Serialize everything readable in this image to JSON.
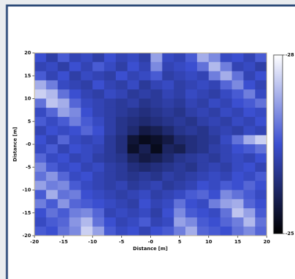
{
  "chart_data": {
    "type": "heatmap",
    "xlabel": "Distance [m]",
    "ylabel": "Distance [m]",
    "xlim": [
      -20,
      20
    ],
    "ylim": [
      -20,
      20
    ],
    "xticks": [
      -20,
      -15,
      -10,
      -5,
      {
        "value": 0,
        "label": "-0"
      },
      5,
      10,
      15,
      20
    ],
    "yticks": [
      20,
      15,
      10,
      5,
      {
        "value": 0,
        "label": "-0"
      },
      -5,
      -10,
      -15,
      -20
    ],
    "colormap": [
      "#000000",
      "#3b4fd0",
      "#ffffff"
    ],
    "zlim": [
      -25,
      -28
    ],
    "zticks": [
      -28,
      -25
    ],
    "z": [
      [
        -26.5,
        -26.2,
        -26.6,
        -26.3,
        -26.4,
        -26.2,
        -26.5,
        -26.3,
        -26.4,
        -26.2,
        -27.2,
        -26.4,
        -26.3,
        -26.6,
        -27.3,
        -27.0,
        -26.4,
        -26.5,
        -26.3,
        -26.6
      ],
      [
        -26.3,
        -26.4,
        -26.2,
        -26.5,
        -26.3,
        -26.6,
        -26.4,
        -26.2,
        -26.5,
        -26.3,
        -27.0,
        -26.3,
        -26.4,
        -26.5,
        -26.8,
        -27.4,
        -26.9,
        -26.3,
        -26.4,
        -26.2
      ],
      [
        -26.6,
        -26.3,
        -26.5,
        -26.2,
        -26.4,
        -26.3,
        -26.2,
        -26.5,
        -26.3,
        -26.4,
        -26.6,
        -26.2,
        -26.3,
        -26.4,
        -26.3,
        -26.9,
        -27.3,
        -26.8,
        -26.3,
        -26.5
      ],
      [
        -27.3,
        -26.9,
        -26.4,
        -26.3,
        -26.2,
        -26.5,
        -26.3,
        -26.2,
        -26.4,
        -26.1,
        -26.3,
        -26.4,
        -26.2,
        -26.3,
        -26.4,
        -26.3,
        -26.7,
        -27.0,
        -26.5,
        -26.3
      ],
      [
        -27.6,
        -27.4,
        -26.8,
        -26.5,
        -26.3,
        -26.2,
        -26.4,
        -26.3,
        -26.1,
        -26.2,
        -26.1,
        -26.3,
        -26.2,
        -26.4,
        -26.3,
        -26.2,
        -26.4,
        -26.6,
        -26.9,
        -26.4
      ],
      [
        -26.8,
        -27.5,
        -27.3,
        -26.7,
        -26.4,
        -26.3,
        -26.2,
        -26.1,
        -26.2,
        -26.0,
        -26.1,
        -26.2,
        -26.1,
        -26.3,
        -26.2,
        -26.4,
        -26.3,
        -26.5,
        -26.6,
        -26.8
      ],
      [
        -26.4,
        -26.7,
        -27.2,
        -27.0,
        -26.5,
        -26.3,
        -26.2,
        -26.1,
        -26.0,
        -25.9,
        -26.0,
        -26.1,
        -26.0,
        -26.2,
        -26.3,
        -26.2,
        -26.4,
        -26.3,
        -26.5,
        -26.4
      ],
      [
        -26.6,
        -26.4,
        -26.6,
        -26.9,
        -26.6,
        -26.4,
        -26.2,
        -26.0,
        -25.9,
        -25.8,
        -25.9,
        -26.0,
        -26.1,
        -26.0,
        -26.2,
        -26.3,
        -26.2,
        -26.4,
        -26.3,
        -26.5
      ],
      [
        -26.3,
        -26.5,
        -26.4,
        -26.5,
        -26.7,
        -26.5,
        -26.2,
        -26.0,
        -25.8,
        -25.5,
        -25.6,
        -25.8,
        -26.0,
        -26.1,
        -26.0,
        -26.2,
        -26.3,
        -26.2,
        -26.4,
        -26.3
      ],
      [
        -26.5,
        -26.3,
        -26.7,
        -26.4,
        -26.3,
        -26.4,
        -26.1,
        -25.9,
        -25.4,
        -25.2,
        -25.3,
        -25.5,
        -25.8,
        -25.9,
        -26.0,
        -26.1,
        -26.4,
        -26.8,
        -27.3,
        -27.6
      ],
      [
        -26.4,
        -26.6,
        -26.3,
        -26.5,
        -26.4,
        -26.3,
        -26.1,
        -25.9,
        -25.3,
        -25.6,
        -25.2,
        -25.7,
        -25.6,
        -25.9,
        -26.0,
        -26.2,
        -26.3,
        -26.5,
        -26.6,
        -26.8
      ],
      [
        -26.7,
        -26.4,
        -26.5,
        -26.3,
        -26.4,
        -26.2,
        -26.1,
        -26.0,
        -25.7,
        -25.5,
        -25.6,
        -25.8,
        -26.0,
        -26.1,
        -26.2,
        -26.1,
        -26.3,
        -26.4,
        -26.3,
        -26.5
      ],
      [
        -27.0,
        -26.6,
        -26.4,
        -26.5,
        -26.3,
        -26.4,
        -26.2,
        -26.1,
        -25.9,
        -25.8,
        -25.9,
        -26.0,
        -26.1,
        -26.0,
        -26.2,
        -26.3,
        -26.2,
        -26.4,
        -26.5,
        -26.3
      ],
      [
        -26.8,
        -27.1,
        -26.7,
        -26.4,
        -26.5,
        -26.3,
        -26.2,
        -26.1,
        -26.0,
        -26.1,
        -26.0,
        -26.2,
        -26.1,
        -26.2,
        -26.3,
        -26.4,
        -26.3,
        -26.5,
        -26.4,
        -26.6
      ],
      [
        -27.2,
        -26.9,
        -27.0,
        -26.6,
        -26.4,
        -26.3,
        -26.2,
        -26.3,
        -26.1,
        -26.2,
        -26.3,
        -26.1,
        -26.2,
        -26.3,
        -26.5,
        -26.4,
        -26.6,
        -26.5,
        -26.7,
        -26.5
      ],
      [
        -26.6,
        -27.3,
        -26.8,
        -26.9,
        -26.5,
        -26.4,
        -26.3,
        -26.2,
        -26.3,
        -26.4,
        -26.2,
        -26.3,
        -26.4,
        -26.6,
        -26.7,
        -26.5,
        -27.0,
        -26.8,
        -26.6,
        -26.4
      ],
      [
        -26.9,
        -26.6,
        -27.1,
        -26.7,
        -26.6,
        -26.5,
        -26.4,
        -26.3,
        -26.2,
        -26.5,
        -26.3,
        -26.4,
        -26.8,
        -26.5,
        -26.4,
        -26.9,
        -27.2,
        -27.3,
        -26.7,
        -26.5
      ],
      [
        -26.5,
        -26.8,
        -26.6,
        -26.9,
        -27.0,
        -26.7,
        -26.3,
        -26.4,
        -26.3,
        -26.4,
        -26.2,
        -26.5,
        -27.0,
        -26.6,
        -26.5,
        -26.4,
        -26.8,
        -27.5,
        -27.2,
        -26.6
      ],
      [
        -26.4,
        -26.6,
        -26.7,
        -27.1,
        -27.4,
        -26.8,
        -26.5,
        -26.3,
        -26.4,
        -26.6,
        -26.3,
        -26.4,
        -27.2,
        -27.0,
        -26.6,
        -26.5,
        -26.7,
        -26.9,
        -27.4,
        -26.8
      ],
      [
        -26.6,
        -26.5,
        -26.8,
        -27.0,
        -27.6,
        -27.2,
        -26.6,
        -26.4,
        -26.5,
        -26.3,
        -26.5,
        -26.6,
        -26.9,
        -27.3,
        -26.7,
        -26.6,
        -26.5,
        -26.8,
        -27.0,
        -26.7
      ]
    ]
  }
}
